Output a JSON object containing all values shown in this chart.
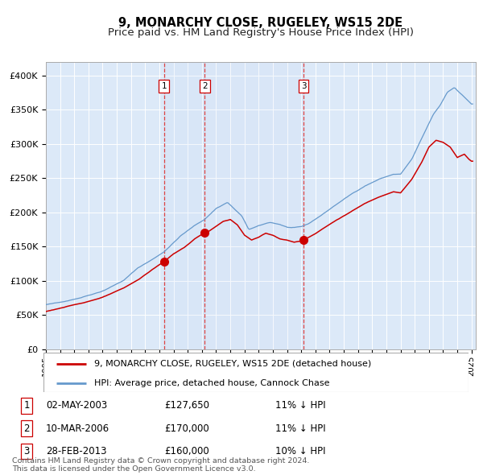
{
  "title": "9, MONARCHY CLOSE, RUGELEY, WS15 2DE",
  "subtitle": "Price paid vs. HM Land Registry's House Price Index (HPI)",
  "ylim": [
    0,
    420000
  ],
  "yticks": [
    0,
    50000,
    100000,
    150000,
    200000,
    250000,
    300000,
    350000,
    400000
  ],
  "ytick_labels": [
    "£0",
    "£50K",
    "£100K",
    "£150K",
    "£200K",
    "£250K",
    "£300K",
    "£350K",
    "£400K"
  ],
  "background_color": "#dce9f8",
  "grid_color": "#ffffff",
  "red_line_color": "#cc0000",
  "blue_line_color": "#6699cc",
  "sale1_date": 2003.33,
  "sale1_price": 127650,
  "sale2_date": 2006.19,
  "sale2_price": 170000,
  "sale3_date": 2013.16,
  "sale3_price": 160000,
  "legend_red": "9, MONARCHY CLOSE, RUGELEY, WS15 2DE (detached house)",
  "legend_blue": "HPI: Average price, detached house, Cannock Chase",
  "table_rows": [
    {
      "num": 1,
      "date": "02-MAY-2003",
      "price": "£127,650",
      "pct": "11% ↓ HPI"
    },
    {
      "num": 2,
      "date": "10-MAR-2006",
      "price": "£170,000",
      "pct": "11% ↓ HPI"
    },
    {
      "num": 3,
      "date": "28-FEB-2013",
      "price": "£160,000",
      "pct": "10% ↓ HPI"
    }
  ],
  "footnote1": "Contains HM Land Registry data © Crown copyright and database right 2024.",
  "footnote2": "This data is licensed under the Open Government Licence v3.0.",
  "title_fontsize": 10.5,
  "subtitle_fontsize": 9.5,
  "tick_fontsize": 8,
  "legend_fontsize": 8,
  "table_fontsize": 8.5
}
